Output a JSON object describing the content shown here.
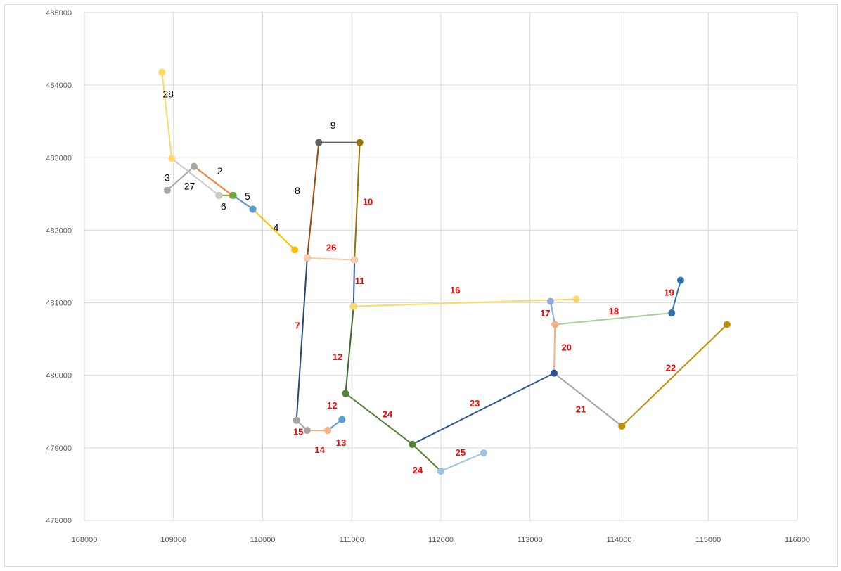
{
  "chart_data": {
    "type": "scatter",
    "title": "",
    "xlabel": "",
    "ylabel": "",
    "xlim": [
      108000,
      116000
    ],
    "ylim": [
      478000,
      485000
    ],
    "x_ticks": [
      108000,
      109000,
      110000,
      111000,
      112000,
      113000,
      114000,
      115000,
      116000
    ],
    "y_ticks": [
      478000,
      479000,
      480000,
      481000,
      482000,
      483000,
      484000,
      485000
    ],
    "x_tick_labels": [
      "108000",
      "109000",
      "110000",
      "111000",
      "112000",
      "113000",
      "114000",
      "115000",
      "116000"
    ],
    "y_tick_labels": [
      "478000",
      "479000",
      "480000",
      "481000",
      "482000",
      "483000",
      "484000",
      "485000"
    ],
    "grid": true,
    "legend": "none",
    "series": [
      {
        "color": "#4472c4",
        "points": [
          [
            109670,
            482480
          ],
          [
            109890,
            482290
          ]
        ]
      },
      {
        "color": "#ed7d31",
        "points": [
          [
            109230,
            482880
          ],
          [
            109660,
            482480
          ]
        ]
      },
      {
        "color": "#a5a5a5",
        "points": [
          [
            108930,
            482550
          ],
          [
            109230,
            482880
          ]
        ]
      },
      {
        "color": "#ffc000",
        "points": [
          [
            109890,
            482290
          ],
          [
            110360,
            481730
          ]
        ]
      },
      {
        "color": "#5b9bd5",
        "points": [
          [
            109670,
            482480
          ],
          [
            109890,
            482290
          ]
        ]
      },
      {
        "color": "#70ad47",
        "points": [
          [
            109510,
            482480
          ],
          [
            109670,
            482480
          ]
        ]
      },
      {
        "color": "#264478",
        "points": [
          [
            110380,
            479380
          ],
          [
            110500,
            481620
          ]
        ]
      },
      {
        "color": "#9e480e",
        "points": [
          [
            110500,
            481620
          ],
          [
            110630,
            483210
          ]
        ]
      },
      {
        "color": "#636363",
        "points": [
          [
            110630,
            483210
          ],
          [
            111090,
            483210
          ]
        ]
      },
      {
        "color": "#997300",
        "points": [
          [
            111090,
            483210
          ],
          [
            111030,
            481590
          ]
        ]
      },
      {
        "color": "#255e91",
        "points": [
          [
            111030,
            481590
          ],
          [
            111020,
            480950
          ]
        ]
      },
      {
        "color": "#43682b",
        "points": [
          [
            111020,
            480950
          ],
          [
            110930,
            479750
          ]
        ]
      },
      {
        "color": "#5b9bd5",
        "points": [
          [
            110730,
            479240
          ],
          [
            110890,
            479390
          ]
        ]
      },
      {
        "color": "#f4b183",
        "points": [
          [
            110500,
            479240
          ],
          [
            110730,
            479240
          ]
        ]
      },
      {
        "color": "#a5a5a5",
        "points": [
          [
            110380,
            479380
          ],
          [
            110500,
            479240
          ]
        ]
      },
      {
        "color": "#ffd966",
        "points": [
          [
            111020,
            480950
          ],
          [
            113520,
            481050
          ]
        ]
      },
      {
        "color": "#8faadc",
        "points": [
          [
            113230,
            481020
          ],
          [
            113280,
            480700
          ]
        ]
      },
      {
        "color": "#a9d18e",
        "points": [
          [
            113280,
            480700
          ],
          [
            114590,
            480860
          ]
        ]
      },
      {
        "color": "#2e75b6",
        "points": [
          [
            114590,
            480860
          ],
          [
            114690,
            481310
          ]
        ]
      },
      {
        "color": "#f4b183",
        "points": [
          [
            113280,
            480700
          ],
          [
            113270,
            480030
          ]
        ]
      },
      {
        "color": "#a5a5a5",
        "points": [
          [
            113270,
            480030
          ],
          [
            114030,
            479300
          ]
        ]
      },
      {
        "color": "#bf9000",
        "points": [
          [
            114030,
            479300
          ],
          [
            115210,
            480700
          ]
        ]
      },
      {
        "color": "#2f5597",
        "points": [
          [
            111680,
            479050
          ],
          [
            113270,
            480030
          ]
        ]
      },
      {
        "color": "#548235",
        "points": [
          [
            110930,
            479750
          ],
          [
            111680,
            479050
          ],
          [
            112000,
            478680
          ]
        ]
      },
      {
        "color": "#9dc3e6",
        "points": [
          [
            112000,
            478680
          ],
          [
            112480,
            478930
          ]
        ]
      },
      {
        "color": "#f8cbad",
        "points": [
          [
            110500,
            481620
          ],
          [
            111030,
            481590
          ]
        ]
      },
      {
        "color": "#c9c9c9",
        "points": [
          [
            108980,
            482990
          ],
          [
            109510,
            482480
          ]
        ]
      },
      {
        "color": "#ffd966",
        "points": [
          [
            108870,
            484180
          ],
          [
            108980,
            482990
          ]
        ]
      }
    ],
    "annotations": [
      {
        "text": "28",
        "x": 108940,
        "y": 483830,
        "color": "black"
      },
      {
        "text": "3",
        "x": 108930,
        "y": 482680,
        "color": "black"
      },
      {
        "text": "27",
        "x": 109180,
        "y": 482560,
        "color": "black"
      },
      {
        "text": "2",
        "x": 109520,
        "y": 482770,
        "color": "black"
      },
      {
        "text": "6",
        "x": 109560,
        "y": 482280,
        "color": "black"
      },
      {
        "text": "5",
        "x": 109830,
        "y": 482420,
        "color": "black"
      },
      {
        "text": "4",
        "x": 110150,
        "y": 481990,
        "color": "black"
      },
      {
        "text": "8",
        "x": 110390,
        "y": 482500,
        "color": "black"
      },
      {
        "text": "9",
        "x": 110790,
        "y": 483400,
        "color": "black"
      },
      {
        "text": "10",
        "x": 111180,
        "y": 482350,
        "color": "red"
      },
      {
        "text": "26",
        "x": 110770,
        "y": 481720,
        "color": "red"
      },
      {
        "text": "11",
        "x": 111090,
        "y": 481260,
        "color": "red"
      },
      {
        "text": "16",
        "x": 112160,
        "y": 481130,
        "color": "red"
      },
      {
        "text": "7",
        "x": 110390,
        "y": 480640,
        "color": "red"
      },
      {
        "text": "12",
        "x": 110840,
        "y": 480210,
        "color": "red"
      },
      {
        "text": "12",
        "x": 110780,
        "y": 479540,
        "color": "red"
      },
      {
        "text": "24",
        "x": 111400,
        "y": 479420,
        "color": "red"
      },
      {
        "text": "23",
        "x": 112380,
        "y": 479570,
        "color": "red"
      },
      {
        "text": "15",
        "x": 110400,
        "y": 479180,
        "color": "red"
      },
      {
        "text": "13",
        "x": 110880,
        "y": 479030,
        "color": "red"
      },
      {
        "text": "14",
        "x": 110640,
        "y": 478930,
        "color": "red"
      },
      {
        "text": "25",
        "x": 112220,
        "y": 478890,
        "color": "red"
      },
      {
        "text": "24",
        "x": 111740,
        "y": 478650,
        "color": "red"
      },
      {
        "text": "17",
        "x": 113170,
        "y": 480810,
        "color": "red"
      },
      {
        "text": "18",
        "x": 113940,
        "y": 480840,
        "color": "red"
      },
      {
        "text": "19",
        "x": 114560,
        "y": 481100,
        "color": "red"
      },
      {
        "text": "20",
        "x": 113410,
        "y": 480340,
        "color": "red"
      },
      {
        "text": "21",
        "x": 113570,
        "y": 479490,
        "color": "red"
      },
      {
        "text": "22",
        "x": 114580,
        "y": 480060,
        "color": "red"
      }
    ]
  }
}
